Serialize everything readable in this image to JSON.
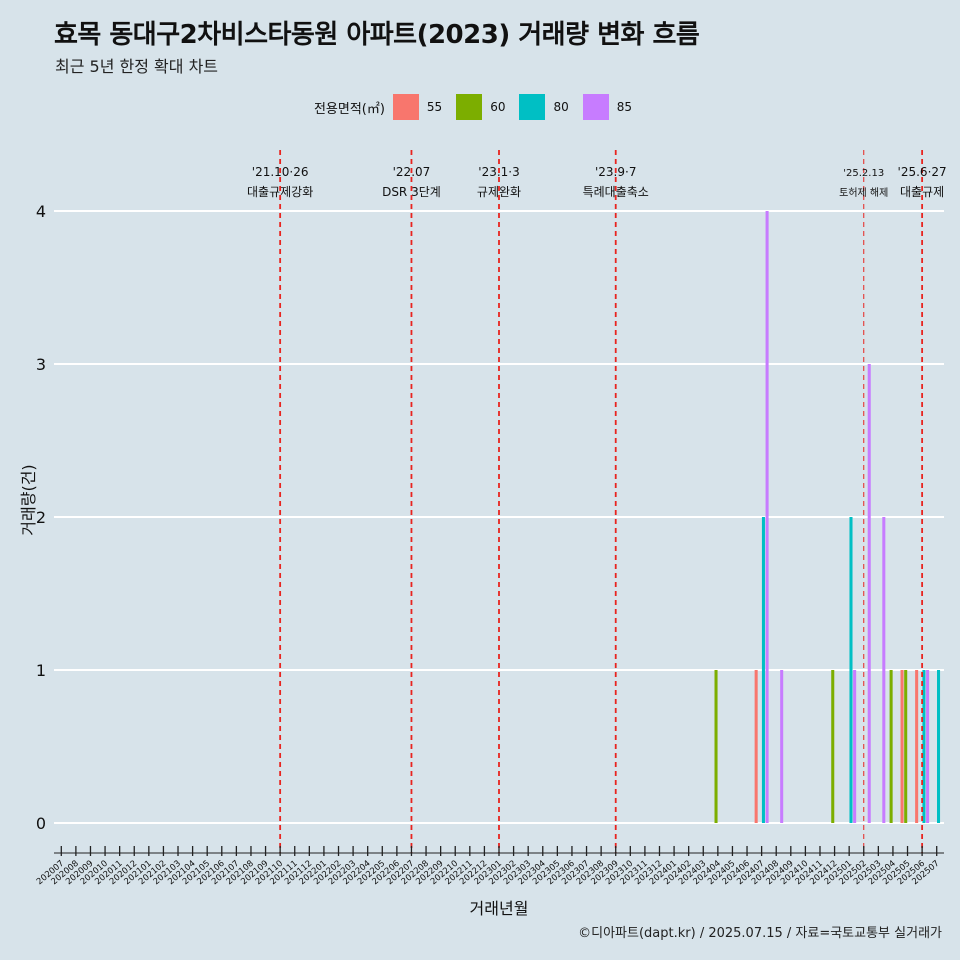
{
  "title": "효목 동대구2차비스타동원 아파트(2023) 거래량 변화 흐름",
  "subtitle": "최근 5년 한정 확대 차트",
  "caption": "©디아파트(dapt.kr) / 2025.07.15 / 자료=국토교통부 실거래가",
  "legend": {
    "title": "전용면적(㎡)",
    "items": [
      {
        "label": "55",
        "color": "#f8766d"
      },
      {
        "label": "60",
        "color": "#7cae00"
      },
      {
        "label": "80",
        "color": "#00bfc4"
      },
      {
        "label": "85",
        "color": "#c77cff"
      }
    ]
  },
  "chart_data": {
    "type": "bar",
    "xlabel": "거래년월",
    "ylabel": "거래량(건)",
    "ylim": [
      0,
      4
    ],
    "yticks": [
      0,
      1,
      2,
      3,
      4
    ],
    "grid": "horizontal",
    "legend_position": "top",
    "categories": [
      "202007",
      "202008",
      "202009",
      "202010",
      "202011",
      "202012",
      "202101",
      "202102",
      "202103",
      "202104",
      "202105",
      "202106",
      "202107",
      "202108",
      "202109",
      "202110",
      "202111",
      "202112",
      "202201",
      "202202",
      "202203",
      "202204",
      "202205",
      "202206",
      "202207",
      "202208",
      "202209",
      "202210",
      "202211",
      "202212",
      "202301",
      "202302",
      "202303",
      "202304",
      "202305",
      "202306",
      "202307",
      "202308",
      "202309",
      "202310",
      "202311",
      "202312",
      "202401",
      "202402",
      "202403",
      "202404",
      "202405",
      "202406",
      "202407",
      "202408",
      "202409",
      "202410",
      "202411",
      "202412",
      "202501",
      "202502",
      "202503",
      "202504",
      "202505",
      "202506",
      "202507"
    ],
    "series": [
      {
        "name": "55",
        "color": "#f8766d",
        "points": [
          {
            "x": "202407",
            "y": 1
          },
          {
            "x": "202505",
            "y": 1
          },
          {
            "x": "202506",
            "y": 1
          }
        ]
      },
      {
        "name": "60",
        "color": "#7cae00",
        "points": [
          {
            "x": "202404",
            "y": 1
          },
          {
            "x": "202412",
            "y": 1
          },
          {
            "x": "202504",
            "y": 1
          },
          {
            "x": "202505",
            "y": 1
          }
        ]
      },
      {
        "name": "80",
        "color": "#00bfc4",
        "points": [
          {
            "x": "202407",
            "y": 2
          },
          {
            "x": "202501",
            "y": 2
          },
          {
            "x": "202506",
            "y": 1
          },
          {
            "x": "202507",
            "y": 1
          }
        ]
      },
      {
        "name": "85",
        "color": "#c77cff",
        "points": [
          {
            "x": "202407",
            "y": 4
          },
          {
            "x": "202408",
            "y": 1
          },
          {
            "x": "202501",
            "y": 1
          },
          {
            "x": "202502",
            "y": 3
          },
          {
            "x": "202503",
            "y": 2
          },
          {
            "x": "202506",
            "y": 1
          }
        ]
      }
    ],
    "annotations": [
      {
        "x": "202110",
        "date": "'21.10·26",
        "text": "대출규제강화"
      },
      {
        "x": "202207",
        "date": "'22.07",
        "text": "DSR 3단계"
      },
      {
        "x": "202301",
        "date": "'23.1·3",
        "text": "규제완화"
      },
      {
        "x": "202309",
        "date": "'23.9·7",
        "text": "특례대출축소"
      },
      {
        "x": "202502",
        "date": "'25.2.13",
        "text": "토허제 해제",
        "style": "thin"
      },
      {
        "x": "202506",
        "date": "'25.6·27",
        "text": "대출규제"
      }
    ]
  }
}
